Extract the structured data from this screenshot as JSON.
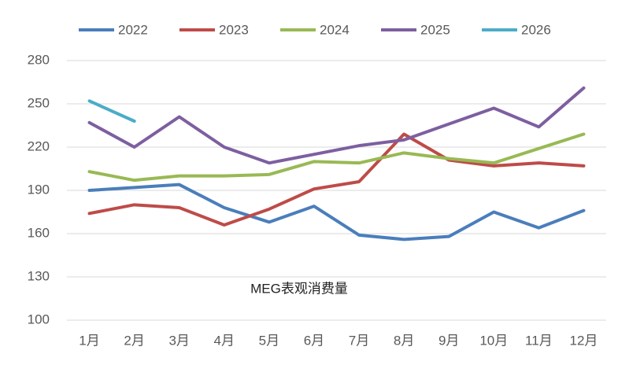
{
  "chart_data": {
    "type": "line",
    "annotation": "MEG表观消费量",
    "categories": [
      "1月",
      "2月",
      "3月",
      "4月",
      "5月",
      "6月",
      "7月",
      "8月",
      "9月",
      "10月",
      "11月",
      "12月"
    ],
    "series": [
      {
        "name": "2022",
        "color": "#4a7ebb",
        "values": [
          190,
          192,
          194,
          178,
          168,
          179,
          159,
          156,
          158,
          175,
          164,
          176
        ]
      },
      {
        "name": "2023",
        "color": "#be4b48",
        "values": [
          174,
          180,
          178,
          166,
          177,
          191,
          196,
          229,
          211,
          207,
          209,
          207
        ]
      },
      {
        "name": "2024",
        "color": "#98b954",
        "values": [
          203,
          197,
          200,
          200,
          201,
          210,
          209,
          216,
          212,
          209,
          219,
          229
        ]
      },
      {
        "name": "2025",
        "color": "#7d5fa0",
        "values": [
          237,
          220,
          241,
          220,
          209,
          215,
          221,
          225,
          236,
          247,
          234,
          261
        ]
      },
      {
        "name": "2026",
        "color": "#4bacc6",
        "values": [
          252,
          238,
          null,
          null,
          null,
          null,
          null,
          null,
          null,
          null,
          null,
          null
        ]
      }
    ],
    "ylim": [
      100,
      280
    ],
    "yticks": [
      100,
      130,
      160,
      190,
      220,
      250,
      280
    ],
    "grid": true,
    "legend": "top"
  }
}
